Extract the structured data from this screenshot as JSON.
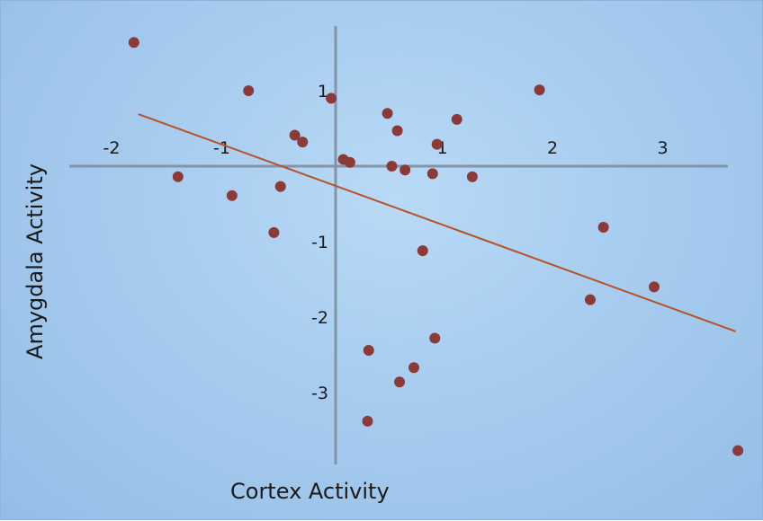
{
  "chart_data": {
    "type": "scatter",
    "title": "",
    "xlabel": "Cortex Activity",
    "ylabel": "Amygdala Activity",
    "xlim": [
      -2.4,
      3.5
    ],
    "ylim": [
      -4.0,
      1.9
    ],
    "x_ticks": [
      "-2",
      "-1",
      "1",
      "2",
      "3"
    ],
    "x_tick_values": [
      -2,
      -1,
      1,
      2,
      3
    ],
    "y_ticks": [
      "1",
      "-1",
      "-2",
      "-3"
    ],
    "y_tick_values": [
      1,
      -1,
      -2,
      -3
    ],
    "grid": false,
    "legend": "none",
    "points": [
      {
        "x": -1.83,
        "y": 1.64
      },
      {
        "x": -0.79,
        "y": 1.0
      },
      {
        "x": -0.04,
        "y": 0.9
      },
      {
        "x": -0.37,
        "y": 0.41
      },
      {
        "x": -0.3,
        "y": 0.32
      },
      {
        "x": 0.47,
        "y": 0.7
      },
      {
        "x": 0.56,
        "y": 0.47
      },
      {
        "x": 0.92,
        "y": 0.29
      },
      {
        "x": 1.1,
        "y": 0.62
      },
      {
        "x": 1.85,
        "y": 1.01
      },
      {
        "x": 0.07,
        "y": 0.09
      },
      {
        "x": 0.13,
        "y": 0.05
      },
      {
        "x": 0.51,
        "y": 0.0
      },
      {
        "x": 0.63,
        "y": -0.05
      },
      {
        "x": 0.88,
        "y": -0.1
      },
      {
        "x": 1.24,
        "y": -0.14
      },
      {
        "x": -1.43,
        "y": -0.14
      },
      {
        "x": -0.94,
        "y": -0.39
      },
      {
        "x": -0.5,
        "y": -0.27
      },
      {
        "x": -0.56,
        "y": -0.88
      },
      {
        "x": 0.79,
        "y": -1.12
      },
      {
        "x": 2.43,
        "y": -0.81
      },
      {
        "x": 2.31,
        "y": -1.77
      },
      {
        "x": 2.89,
        "y": -1.6
      },
      {
        "x": 0.3,
        "y": -2.44
      },
      {
        "x": 0.9,
        "y": -2.28
      },
      {
        "x": 0.71,
        "y": -2.67
      },
      {
        "x": 0.58,
        "y": -2.86
      },
      {
        "x": 0.29,
        "y": -3.38
      },
      {
        "x": 3.65,
        "y": -3.77
      }
    ],
    "trendline": {
      "x": [
        -1.79,
        3.63
      ],
      "y": [
        0.69,
        -2.19
      ]
    },
    "colors": {
      "points": "#8b3a3a",
      "trendline": "#b5532a",
      "axes": "#8294a6",
      "tick_labels": "#1a1a1a"
    }
  }
}
